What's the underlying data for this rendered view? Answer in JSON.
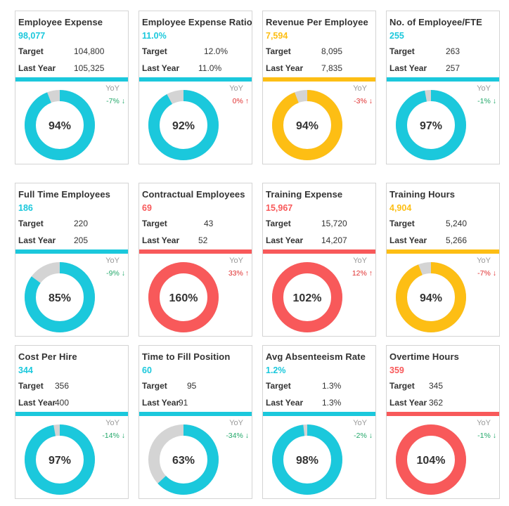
{
  "colors": {
    "teal": "#1BC8DC",
    "gold": "#FDBE14",
    "red": "#F8595A",
    "grey": "#D4D4D4",
    "up": "#E03030",
    "down": "#23A86A"
  },
  "labels": {
    "target": "Target",
    "last_year": "Last Year",
    "yoy": "YoY"
  },
  "chart_data": [
    {
      "type": "pie",
      "title": "Employee Expense",
      "value": "98,077",
      "target": "104,800",
      "last_year": "105,325",
      "percent": 94,
      "percent_label": "94%",
      "yoy": "-7% ↓",
      "yoy_dir": "down",
      "color": "teal"
    },
    {
      "type": "pie",
      "title": "Employee Expense Ratio",
      "value": "11.0%",
      "target": "12.0%",
      "last_year": "11.0%",
      "percent": 92,
      "percent_label": "92%",
      "yoy": "0% ↑",
      "yoy_dir": "up",
      "color": "teal"
    },
    {
      "type": "pie",
      "title": "Revenue Per Employee",
      "value": "7,594",
      "target": "8,095",
      "last_year": "7,835",
      "percent": 94,
      "percent_label": "94%",
      "yoy": "-3% ↓",
      "yoy_dir": "up",
      "color": "gold"
    },
    {
      "type": "pie",
      "title": "No. of Employee/FTE",
      "value": "255",
      "target": "263",
      "last_year": "257",
      "percent": 97,
      "percent_label": "97%",
      "yoy": "-1% ↓",
      "yoy_dir": "down",
      "color": "teal"
    },
    {
      "type": "pie",
      "title": "Full Time Employees",
      "value": "186",
      "target": "220",
      "last_year": "205",
      "percent": 85,
      "percent_label": "85%",
      "yoy": "-9% ↓",
      "yoy_dir": "down",
      "color": "teal"
    },
    {
      "type": "pie",
      "title": "Contractual Employees",
      "value": "69",
      "target": "43",
      "last_year": "52",
      "percent": 160,
      "percent_label": "160%",
      "yoy": "33% ↑",
      "yoy_dir": "up",
      "color": "red"
    },
    {
      "type": "pie",
      "title": "Training Expense",
      "value": "15,967",
      "target": "15,720",
      "last_year": "14,207",
      "percent": 102,
      "percent_label": "102%",
      "yoy": "12% ↑",
      "yoy_dir": "up",
      "color": "red"
    },
    {
      "type": "pie",
      "title": "Training Hours",
      "value": "4,904",
      "target": "5,240",
      "last_year": "5,266",
      "percent": 94,
      "percent_label": "94%",
      "yoy": "-7% ↓",
      "yoy_dir": "up",
      "color": "gold"
    },
    {
      "type": "pie",
      "title": "Cost Per Hire",
      "value": "344",
      "target": "356",
      "last_year": "400",
      "percent": 97,
      "percent_label": "97%",
      "yoy": "-14% ↓",
      "yoy_dir": "down",
      "color": "teal"
    },
    {
      "type": "pie",
      "title": "Time to Fill Position",
      "value": "60",
      "target": "95",
      "last_year": "91",
      "percent": 63,
      "percent_label": "63%",
      "yoy": "-34% ↓",
      "yoy_dir": "down",
      "color": "teal"
    },
    {
      "type": "pie",
      "title": "Avg Absenteeism Rate",
      "value": "1.2%",
      "target": "1.3%",
      "last_year": "1.3%",
      "percent": 98,
      "percent_label": "98%",
      "yoy": "-2% ↓",
      "yoy_dir": "down",
      "color": "teal"
    },
    {
      "type": "pie",
      "title": "Overtime Hours",
      "value": "359",
      "target": "345",
      "last_year": "362",
      "percent": 104,
      "percent_label": "104%",
      "yoy": "-1% ↓",
      "yoy_dir": "down",
      "color": "red"
    }
  ]
}
